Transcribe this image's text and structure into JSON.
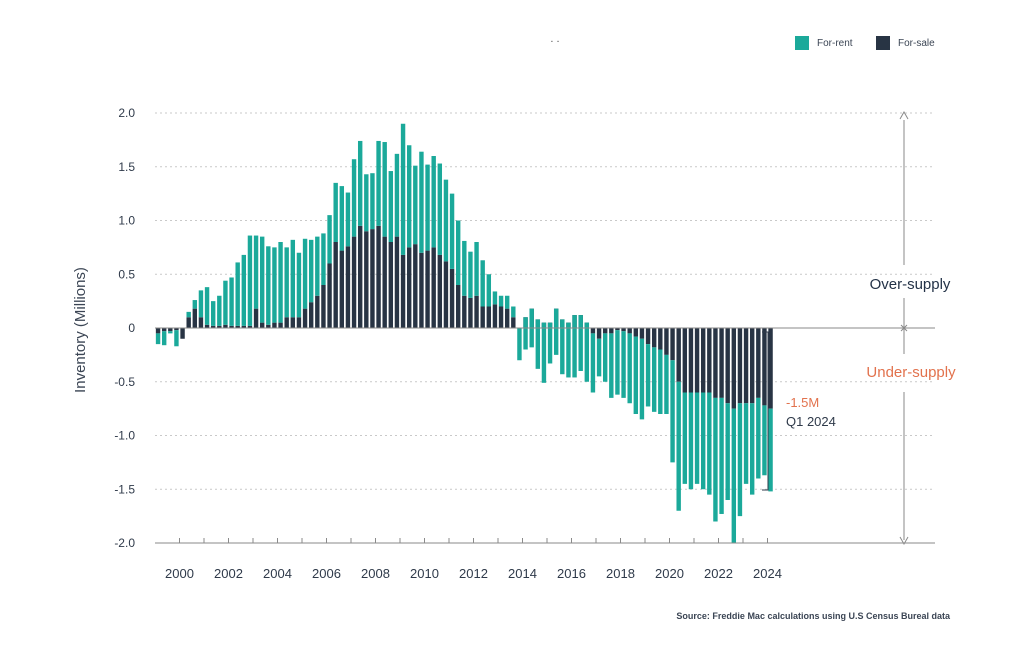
{
  "colors": {
    "for_rent": "#1ba99a",
    "for_sale": "#283444",
    "axis": "#8a8a8a",
    "grid": "#c9c9c9",
    "under": "#e2724d",
    "over": "#233247"
  },
  "title_dots": ". .",
  "chart_data": {
    "type": "bar",
    "stacked": true,
    "title": "",
    "xlabel": "",
    "ylabel": "Inventory (Millions)",
    "ylim": [
      -2.0,
      2.0
    ],
    "y_ticks": [
      "2.0",
      "1.5",
      "1.0",
      "0.5",
      "0",
      "-0.5",
      "-1.0",
      "-1.5",
      "-2.0"
    ],
    "x_ticks": [
      "2000",
      "2002",
      "2004",
      "2006",
      "2008",
      "2010",
      "2012",
      "2014",
      "2016",
      "2018",
      "2020",
      "2022",
      "2024"
    ],
    "x_start": 1999.0,
    "period": "quarterly",
    "legend": [
      {
        "key": "for_rent",
        "label": "For-rent"
      },
      {
        "key": "for_sale",
        "label": "For-sale"
      }
    ],
    "legend_position": "top-right",
    "series": [
      {
        "name": "For-sale",
        "values": [
          -0.05,
          -0.03,
          -0.03,
          -0.02,
          -0.1,
          0.1,
          0.18,
          0.1,
          0.03,
          0.02,
          0.02,
          0.03,
          0.02,
          0.02,
          0.02,
          0.02,
          0.18,
          0.05,
          0.03,
          0.05,
          0.05,
          0.1,
          0.1,
          0.1,
          0.18,
          0.24,
          0.3,
          0.4,
          0.6,
          0.8,
          0.72,
          0.76,
          0.85,
          0.95,
          0.9,
          0.92,
          0.95,
          0.85,
          0.8,
          0.85,
          0.68,
          0.75,
          0.78,
          0.7,
          0.72,
          0.75,
          0.68,
          0.62,
          0.55,
          0.4,
          0.3,
          0.28,
          0.3,
          0.2,
          0.2,
          0.22,
          0.2,
          0.18,
          0.1,
          0.0,
          0.1,
          0.18,
          0.08,
          0.05,
          0.05,
          0.18,
          0.08,
          0.05,
          0.12,
          0.12,
          0.05,
          -0.05,
          -0.1,
          -0.05,
          -0.05,
          -0.02,
          -0.03,
          -0.05,
          -0.08,
          -0.1,
          -0.15,
          -0.18,
          -0.2,
          -0.25,
          -0.3,
          -0.5,
          -0.6,
          -0.6,
          -0.6,
          -0.6,
          -0.6,
          -0.65,
          -0.65,
          -0.7,
          -0.75,
          -0.7,
          -0.7,
          -0.7,
          -0.65,
          -0.72,
          -0.75
        ]
      },
      {
        "name": "For-rent",
        "values": [
          -0.1,
          -0.13,
          -0.02,
          -0.15,
          0.0,
          0.05,
          0.08,
          0.25,
          0.35,
          0.23,
          0.28,
          0.41,
          0.45,
          0.59,
          0.66,
          0.84,
          0.68,
          0.8,
          0.73,
          0.7,
          0.75,
          0.65,
          0.72,
          0.6,
          0.65,
          0.58,
          0.55,
          0.48,
          0.45,
          0.55,
          0.6,
          0.5,
          0.72,
          0.79,
          0.53,
          0.52,
          0.79,
          0.88,
          0.66,
          0.77,
          1.22,
          0.95,
          0.73,
          0.94,
          0.8,
          0.85,
          0.85,
          0.76,
          0.7,
          0.6,
          0.51,
          0.43,
          0.5,
          0.43,
          0.3,
          0.12,
          0.1,
          0.12,
          0.1,
          -0.3,
          -0.3,
          -0.36,
          -0.46,
          -0.56,
          -0.38,
          -0.43,
          -0.51,
          -0.51,
          -0.58,
          -0.52,
          -0.55,
          -0.55,
          -0.35,
          -0.45,
          -0.6,
          -0.6,
          -0.62,
          -0.65,
          -0.72,
          -0.75,
          -0.58,
          -0.6,
          -0.6,
          -0.55,
          -0.95,
          -1.2,
          -0.85,
          -0.9,
          -0.85,
          -0.9,
          -0.95,
          -1.15,
          -1.08,
          -0.9,
          -1.25,
          -1.05,
          -0.75,
          -0.85,
          -0.75,
          -0.65,
          -0.77
        ]
      }
    ],
    "annotations": {
      "over_supply": "Over-supply",
      "under_supply": "Under-supply",
      "latest_value": "-1.5M",
      "latest_date": "Q1 2024"
    },
    "source": "Source: Freddie Mac calculations using U.S Census Bureal data"
  }
}
